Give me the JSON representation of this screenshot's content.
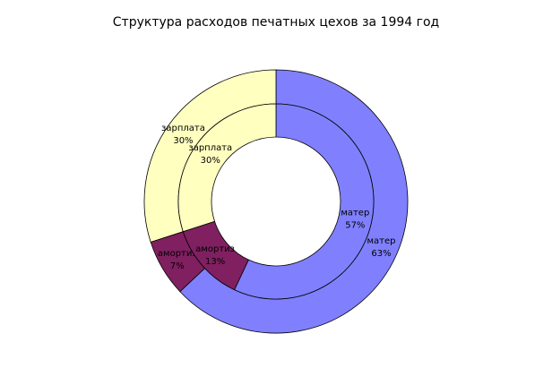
{
  "chart_data": {
    "type": "doughnut",
    "title": "Структура расходов печатных цехов за 1994 год",
    "categories": [
      "матер",
      "амортиз",
      "зарплата"
    ],
    "colors": [
      "#8080ff",
      "#802060",
      "#ffffc0"
    ],
    "series": [
      {
        "values": [
          63,
          7,
          30
        ],
        "value_labels": [
          "63%",
          "7%",
          "30%"
        ]
      },
      {
        "values": [
          57,
          13,
          30
        ],
        "value_labels": [
          "57%",
          "13%",
          "30%"
        ]
      }
    ]
  }
}
